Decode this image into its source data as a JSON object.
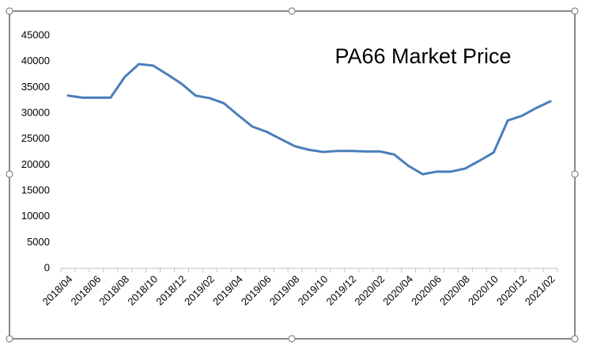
{
  "chart_data": {
    "type": "line",
    "title": "PA66 Market Price",
    "categories": [
      "2018/04",
      null,
      "2018/06",
      null,
      "2018/08",
      null,
      "2018/10",
      null,
      "2018/12",
      null,
      "2019/02",
      null,
      "2019/04",
      null,
      "2019/06",
      null,
      "2019/08",
      null,
      "2019/10",
      null,
      "2019/12",
      null,
      "2020/02",
      null,
      "2020/04",
      null,
      "2020/06",
      null,
      "2020/08",
      null,
      "2020/10",
      null,
      "2020/12",
      null,
      "2021/02"
    ],
    "values": [
      33400,
      33000,
      33000,
      33000,
      37000,
      39500,
      39200,
      37500,
      35700,
      33400,
      32900,
      31900,
      29600,
      27400,
      26400,
      25000,
      23600,
      22900,
      22500,
      22700,
      22700,
      22600,
      22600,
      22000,
      19800,
      18200,
      18700,
      18700,
      19300,
      20800,
      22400,
      28600,
      29500,
      31000,
      32300
    ],
    "color": "#4a7ebb",
    "ylim": [
      0,
      45000
    ],
    "yticks": [
      0,
      5000,
      10000,
      15000,
      20000,
      25000,
      30000,
      35000,
      40000,
      45000
    ],
    "grid": false
  }
}
